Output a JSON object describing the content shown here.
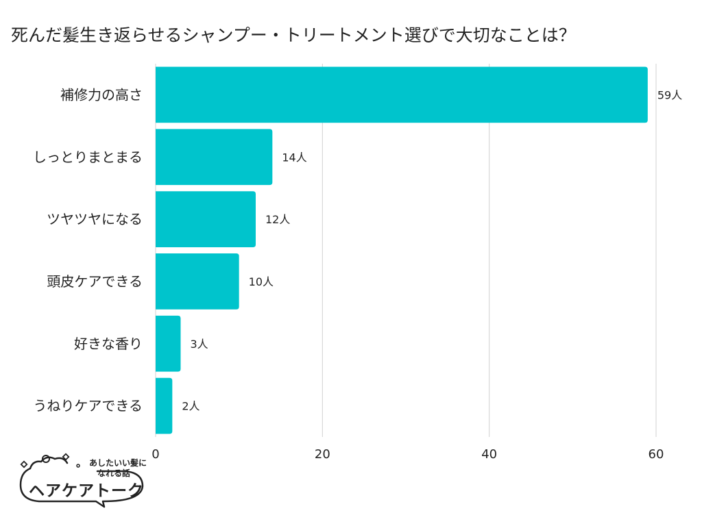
{
  "chart_data": {
    "type": "bar",
    "orientation": "horizontal",
    "title": "死んだ髪生き返らせるシャンプー・トリートメント選びで大切なことは？",
    "categories": [
      "補修力の高さ",
      "しっとりまとまる",
      "ツヤツヤになる",
      "頭皮ケアできる",
      "好きな香り",
      "うねりケアできる"
    ],
    "values": [
      59,
      14,
      12,
      10,
      3,
      2
    ],
    "value_suffix": "人",
    "xlim": [
      0,
      60
    ],
    "xticks": [
      "0",
      "20",
      "40",
      "60"
    ],
    "grid": true,
    "bar_color": "#00c4cc"
  },
  "logo": {
    "tagline_line1": "あしたいい髪に",
    "tagline_line2": "なれる話",
    "brand": "ヘアケアトーク"
  }
}
